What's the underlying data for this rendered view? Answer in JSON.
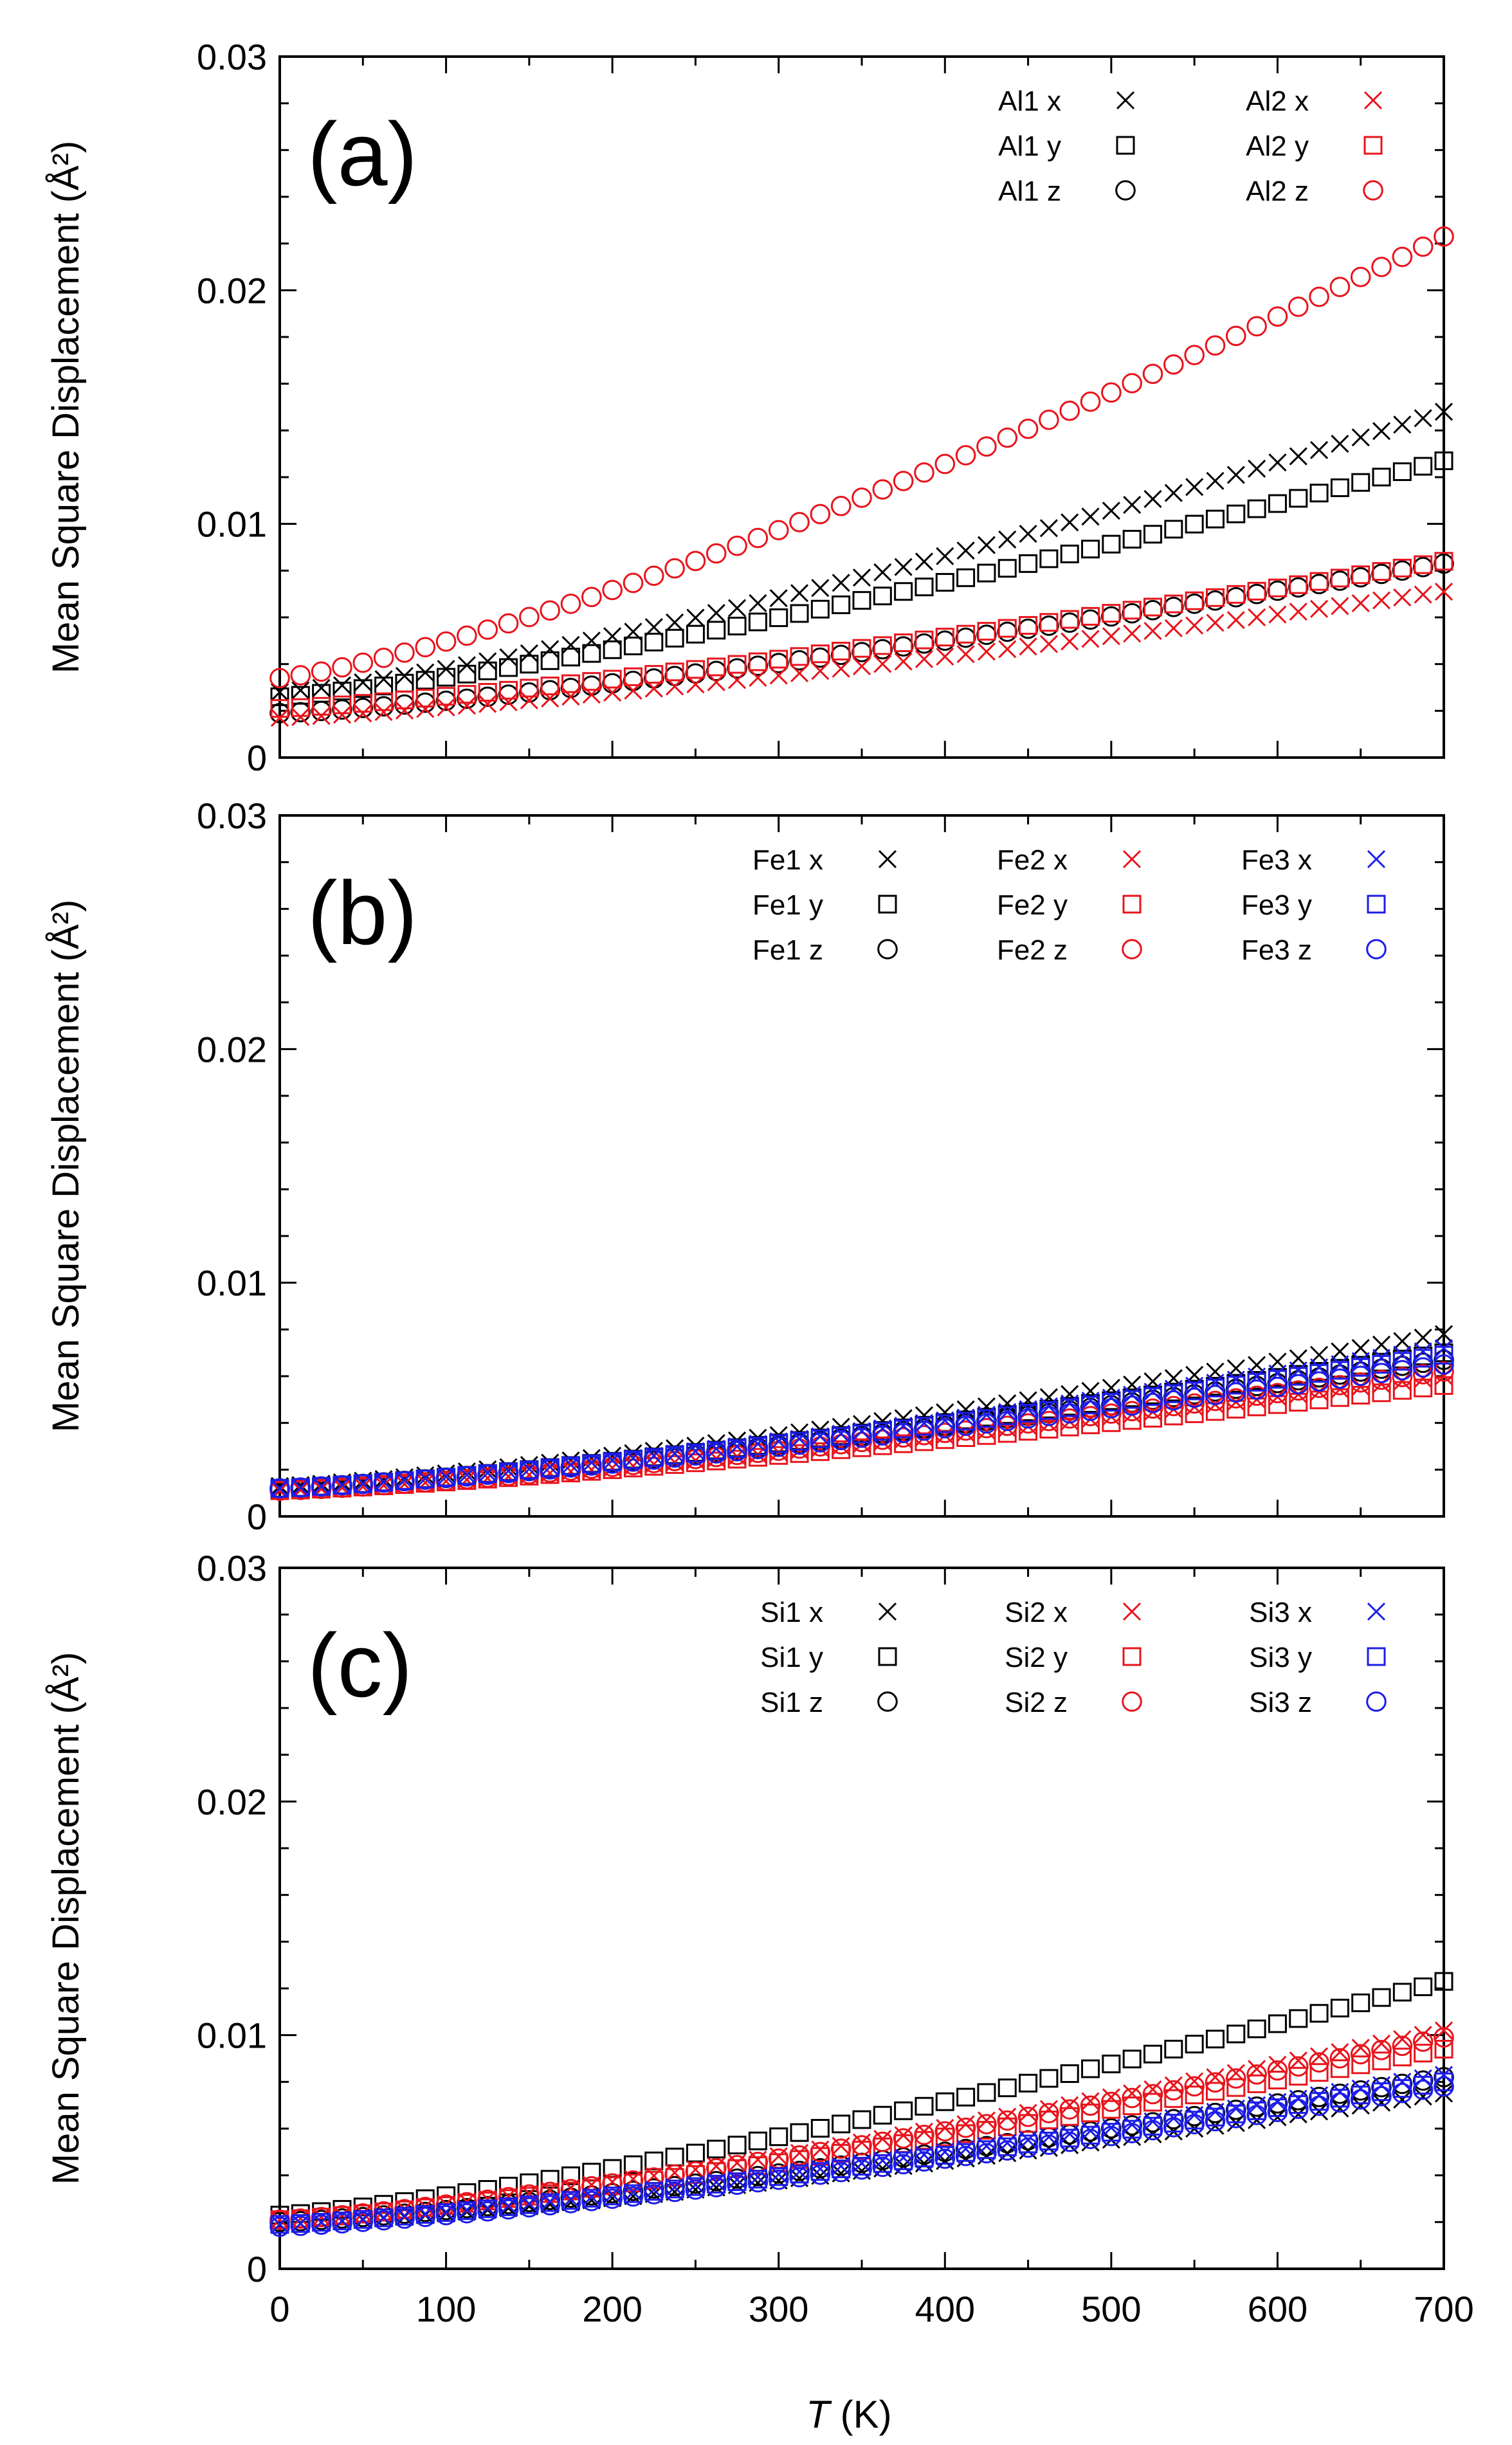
{
  "colors": {
    "black": "#000000",
    "red": "#e8141c",
    "blue": "#1c1ce8"
  },
  "xlabel_var": "T",
  "xlabel_unit": " (K)",
  "x_ticks": [
    "0",
    "100",
    "200",
    "300",
    "400",
    "500",
    "600",
    "700"
  ],
  "chart_data": [
    {
      "type": "scatter",
      "panel_label": "(a)",
      "ylabel": "Mean Square Displacement (Å²)",
      "y_ticks": [
        "0",
        "0.01",
        "0.02",
        "0.03"
      ],
      "xlim": [
        0,
        700
      ],
      "ylim": [
        0,
        0.03
      ],
      "legend_position": "top-right",
      "series": [
        {
          "name": "Al1 x",
          "marker": "cross",
          "color": "black",
          "y0": 0.0028,
          "y700": 0.0148
        },
        {
          "name": "Al1 y",
          "marker": "square",
          "color": "black",
          "y0": 0.0026,
          "y700": 0.0127
        },
        {
          "name": "Al1 z",
          "marker": "circle",
          "color": "black",
          "y0": 0.0019,
          "y700": 0.0083
        },
        {
          "name": "Al2 x",
          "marker": "cross",
          "color": "red",
          "y0": 0.0017,
          "y700": 0.0071
        },
        {
          "name": "Al2 y",
          "marker": "square",
          "color": "red",
          "y0": 0.0021,
          "y700": 0.0084
        },
        {
          "name": "Al2 z",
          "marker": "circle",
          "color": "red",
          "y0": 0.0034,
          "y700": 0.0223
        }
      ]
    },
    {
      "type": "scatter",
      "panel_label": "(b)",
      "ylabel": "Mean Square Displacement (Å²)",
      "y_ticks": [
        "0",
        "0.01",
        "0.02",
        "0.03"
      ],
      "xlim": [
        0,
        700
      ],
      "ylim": [
        0,
        0.03
      ],
      "legend_position": "top-right",
      "series": [
        {
          "name": "Fe1 x",
          "marker": "cross",
          "color": "black",
          "y0": 0.0013,
          "y700": 0.0078
        },
        {
          "name": "Fe1 y",
          "marker": "square",
          "color": "black",
          "y0": 0.0012,
          "y700": 0.007
        },
        {
          "name": "Fe1 z",
          "marker": "circle",
          "color": "black",
          "y0": 0.0012,
          "y700": 0.0067
        },
        {
          "name": "Fe2 x",
          "marker": "cross",
          "color": "red",
          "y0": 0.0011,
          "y700": 0.006
        },
        {
          "name": "Fe2 y",
          "marker": "square",
          "color": "red",
          "y0": 0.0011,
          "y700": 0.0056
        },
        {
          "name": "Fe2 z",
          "marker": "circle",
          "color": "red",
          "y0": 0.0011,
          "y700": 0.0062
        },
        {
          "name": "Fe3 x",
          "marker": "cross",
          "color": "blue",
          "y0": 0.0012,
          "y700": 0.0072
        },
        {
          "name": "Fe3 y",
          "marker": "square",
          "color": "blue",
          "y0": 0.0012,
          "y700": 0.0069
        },
        {
          "name": "Fe3 z",
          "marker": "circle",
          "color": "blue",
          "y0": 0.0012,
          "y700": 0.0065
        }
      ]
    },
    {
      "type": "scatter",
      "panel_label": "(c)",
      "ylabel": "Mean Square Displacement (Å²)",
      "y_ticks": [
        "0",
        "0.01",
        "0.02",
        "0.03"
      ],
      "xlim": [
        0,
        700
      ],
      "ylim": [
        0,
        0.03
      ],
      "legend_position": "top-right",
      "series": [
        {
          "name": "Si1 x",
          "marker": "cross",
          "color": "black",
          "y0": 0.0019,
          "y700": 0.0075
        },
        {
          "name": "Si1 y",
          "marker": "square",
          "color": "black",
          "y0": 0.0023,
          "y700": 0.0123
        },
        {
          "name": "Si1 z",
          "marker": "circle",
          "color": "black",
          "y0": 0.002,
          "y700": 0.0082
        },
        {
          "name": "Si2 x",
          "marker": "cross",
          "color": "red",
          "y0": 0.0021,
          "y700": 0.0102
        },
        {
          "name": "Si2 y",
          "marker": "square",
          "color": "red",
          "y0": 0.0021,
          "y700": 0.0094
        },
        {
          "name": "Si2 z",
          "marker": "circle",
          "color": "red",
          "y0": 0.0021,
          "y700": 0.0099
        },
        {
          "name": "Si3 x",
          "marker": "cross",
          "color": "blue",
          "y0": 0.0019,
          "y700": 0.0083
        },
        {
          "name": "Si3 y",
          "marker": "square",
          "color": "blue",
          "y0": 0.0019,
          "y700": 0.008
        },
        {
          "name": "Si3 z",
          "marker": "circle",
          "color": "blue",
          "y0": 0.0018,
          "y700": 0.0078
        }
      ]
    }
  ]
}
